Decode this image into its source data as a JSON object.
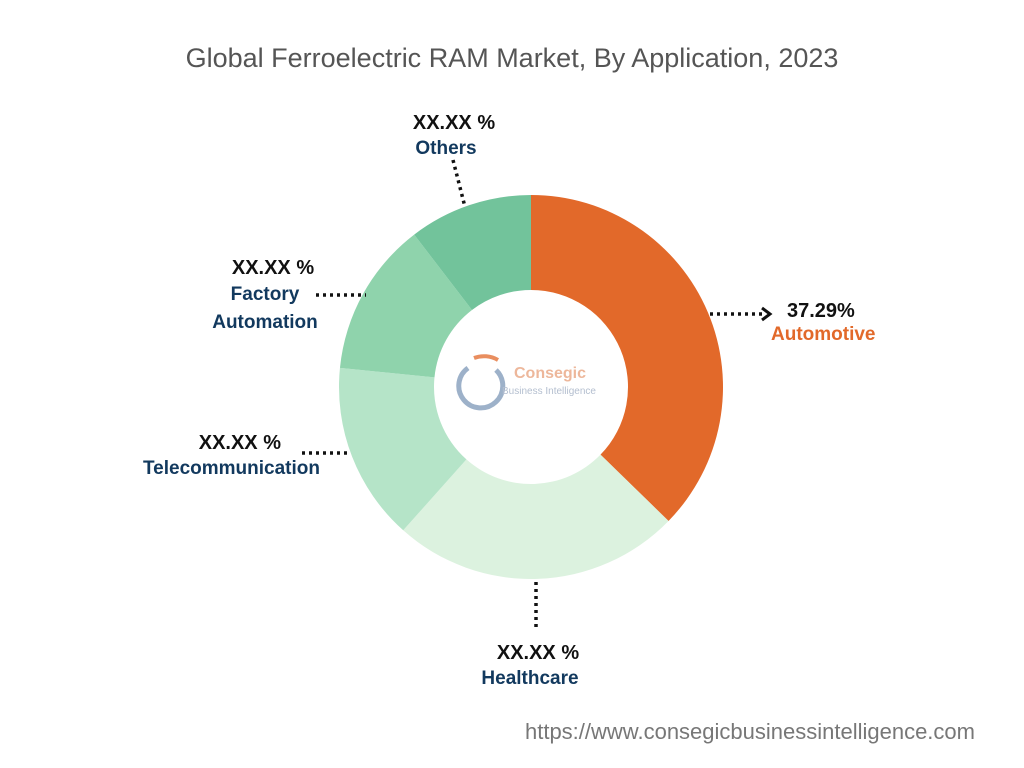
{
  "chart_data": {
    "type": "donut",
    "title": "Global Ferroelectric RAM Market, By Application, 2023",
    "categories": [
      "Automotive",
      "Healthcare",
      "Telecommunication",
      "Factory Automation",
      "Others"
    ],
    "values": [
      37.29,
      24.3,
      15,
      13,
      10.41
    ],
    "value_labels": [
      "37.29%",
      "XX.XX %",
      "XX.XX %",
      "XX.XX %",
      "XX.XX %"
    ],
    "colors": [
      "#e2692a",
      "#dcf2df",
      "#b5e4c8",
      "#8fd3ac",
      "#72c39b"
    ]
  },
  "watermark": {
    "name": "Consegic",
    "tagline": "Business Intelligence"
  },
  "footer": {
    "url": "https://www.consegicbusinessintelligence.com"
  }
}
